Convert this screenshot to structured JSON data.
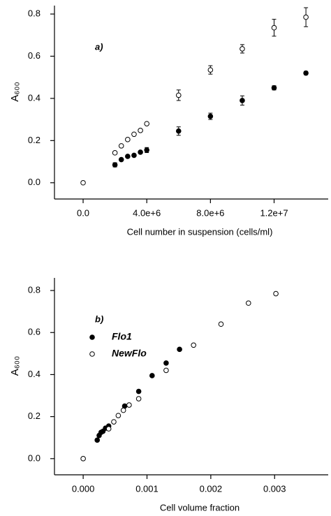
{
  "chart_data": [
    {
      "type": "scatter",
      "annotation": "a)",
      "x_label": "Cell number in suspension (cells/ml)",
      "y_label": "A₆₀₀",
      "xlim": [
        -1800000,
        15400000
      ],
      "ylim": [
        -0.077,
        0.84
      ],
      "xticks": [
        {
          "value": 0,
          "label": "0.0"
        },
        {
          "value": 4000000,
          "label": "4.0e+6"
        },
        {
          "value": 8000000,
          "label": "8.0e+6"
        },
        {
          "value": 12000000,
          "label": "1.2e+7"
        }
      ],
      "yticks": [
        {
          "value": 0,
          "label": "0.0"
        },
        0.2,
        0.4,
        0.6,
        0.8
      ],
      "series": [
        {
          "color": "#000000",
          "marker": "filled",
          "x": [
            2000000,
            2400000,
            2800000,
            3200000,
            3600000,
            4000000,
            6000000,
            8000000,
            10000000,
            12000000,
            14000000
          ],
          "values": [
            0.085,
            0.11,
            0.125,
            0.13,
            0.145,
            0.155,
            0.245,
            0.315,
            0.39,
            0.45,
            0.52
          ],
          "errors": [
            0.01,
            null,
            null,
            null,
            null,
            0.012,
            0.02,
            0.015,
            0.022,
            0.01,
            0.008
          ]
        },
        {
          "color": "#000000",
          "marker": "open",
          "x": [
            0,
            2000000,
            2400000,
            2800000,
            3200000,
            3600000,
            4000000,
            6000000,
            8000000,
            10000000,
            12000000,
            14000000
          ],
          "values": [
            0,
            0.142,
            0.175,
            0.205,
            0.23,
            0.248,
            0.28,
            0.415,
            0.535,
            0.635,
            0.735,
            0.785
          ],
          "errors": [
            null,
            null,
            null,
            null,
            null,
            null,
            null,
            0.025,
            0.02,
            0.02,
            0.04,
            0.045
          ]
        }
      ]
    },
    {
      "type": "scatter",
      "annotation": "b)",
      "x_label": "Cell volume fraction",
      "y_label": "A₆₀₀",
      "xlim": [
        -0.00045,
        0.00384
      ],
      "ylim": [
        -0.077,
        0.86
      ],
      "xticks": [
        {
          "value": 0,
          "label": "0.000"
        },
        0.001,
        0.002,
        0.003
      ],
      "yticks": [
        {
          "value": 0,
          "label": "0.0"
        },
        0.2,
        0.4,
        0.6,
        0.8
      ],
      "series": [
        {
          "name": "Flo1",
          "color": "#000000",
          "marker": "filled",
          "x": [
            0.00022,
            0.00025,
            0.00028,
            0.00031,
            0.00035,
            0.0004,
            0.00065,
            0.00087,
            0.00108,
            0.0013,
            0.00151
          ],
          "values": [
            0.088,
            0.11,
            0.125,
            0.13,
            0.145,
            0.155,
            0.25,
            0.32,
            0.395,
            0.455,
            0.52
          ]
        },
        {
          "name": "NewFlo",
          "color": "#000000",
          "marker": "open",
          "x": [
            0,
            0.0004,
            0.00048,
            0.00055,
            0.00063,
            0.00072,
            0.00087,
            0.0013,
            0.00173,
            0.00216,
            0.00259,
            0.00302
          ],
          "values": [
            0,
            0.142,
            0.175,
            0.205,
            0.23,
            0.255,
            0.285,
            0.42,
            0.54,
            0.64,
            0.74,
            0.785
          ]
        }
      ]
    }
  ]
}
